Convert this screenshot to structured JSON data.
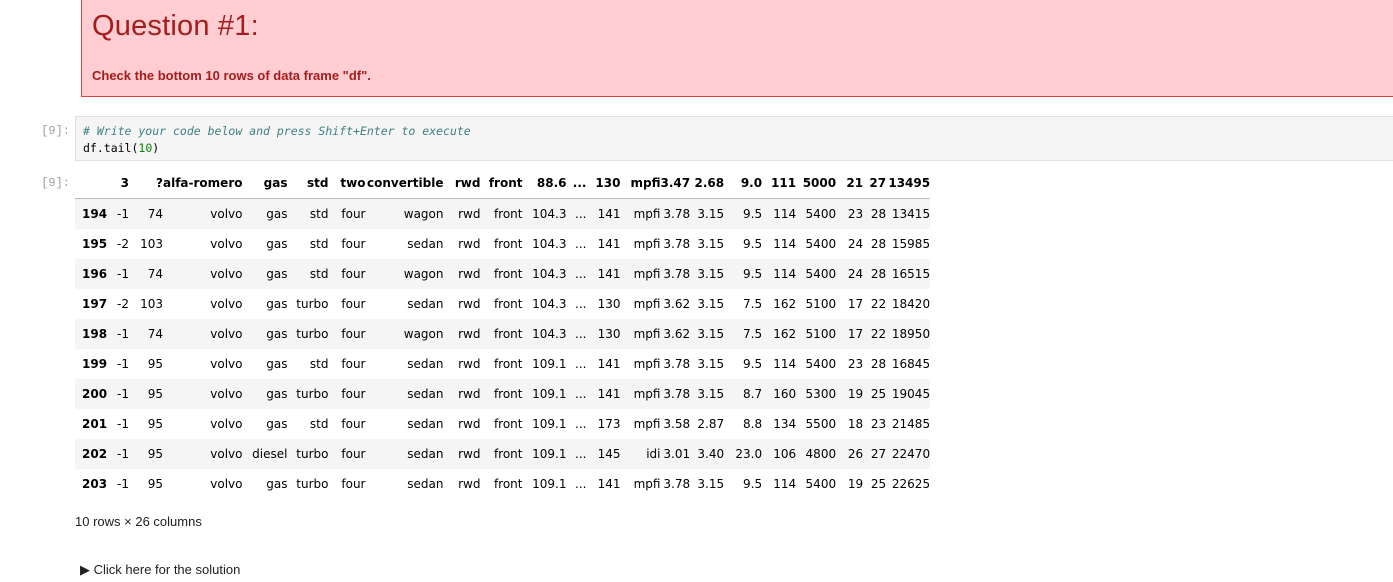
{
  "question": {
    "title": "Question #1:",
    "text": "Check the bottom 10 rows of data frame \"df\"."
  },
  "code_cell": {
    "prompt": "[9]:",
    "comment": "# Write your code below and press Shift+Enter to execute",
    "code_prefix": "df.tail(",
    "code_arg": "10",
    "code_suffix": ")"
  },
  "output": {
    "prompt": "[9]:",
    "columns": [
      "",
      "3",
      "?",
      "alfa-romero",
      "gas",
      "std",
      "two",
      "convertible",
      "rwd",
      "front",
      "88.6",
      "...",
      "130",
      "mpfi",
      "3.47",
      "2.68",
      "9.0",
      "111",
      "5000",
      "21",
      "27",
      "13495"
    ],
    "rows": [
      [
        "194",
        "-1",
        "74",
        "volvo",
        "gas",
        "std",
        "four",
        "wagon",
        "rwd",
        "front",
        "104.3",
        "...",
        "141",
        "mpfi",
        "3.78",
        "3.15",
        "9.5",
        "114",
        "5400",
        "23",
        "28",
        "13415"
      ],
      [
        "195",
        "-2",
        "103",
        "volvo",
        "gas",
        "std",
        "four",
        "sedan",
        "rwd",
        "front",
        "104.3",
        "...",
        "141",
        "mpfi",
        "3.78",
        "3.15",
        "9.5",
        "114",
        "5400",
        "24",
        "28",
        "15985"
      ],
      [
        "196",
        "-1",
        "74",
        "volvo",
        "gas",
        "std",
        "four",
        "wagon",
        "rwd",
        "front",
        "104.3",
        "...",
        "141",
        "mpfi",
        "3.78",
        "3.15",
        "9.5",
        "114",
        "5400",
        "24",
        "28",
        "16515"
      ],
      [
        "197",
        "-2",
        "103",
        "volvo",
        "gas",
        "turbo",
        "four",
        "sedan",
        "rwd",
        "front",
        "104.3",
        "...",
        "130",
        "mpfi",
        "3.62",
        "3.15",
        "7.5",
        "162",
        "5100",
        "17",
        "22",
        "18420"
      ],
      [
        "198",
        "-1",
        "74",
        "volvo",
        "gas",
        "turbo",
        "four",
        "wagon",
        "rwd",
        "front",
        "104.3",
        "...",
        "130",
        "mpfi",
        "3.62",
        "3.15",
        "7.5",
        "162",
        "5100",
        "17",
        "22",
        "18950"
      ],
      [
        "199",
        "-1",
        "95",
        "volvo",
        "gas",
        "std",
        "four",
        "sedan",
        "rwd",
        "front",
        "109.1",
        "...",
        "141",
        "mpfi",
        "3.78",
        "3.15",
        "9.5",
        "114",
        "5400",
        "23",
        "28",
        "16845"
      ],
      [
        "200",
        "-1",
        "95",
        "volvo",
        "gas",
        "turbo",
        "four",
        "sedan",
        "rwd",
        "front",
        "109.1",
        "...",
        "141",
        "mpfi",
        "3.78",
        "3.15",
        "8.7",
        "160",
        "5300",
        "19",
        "25",
        "19045"
      ],
      [
        "201",
        "-1",
        "95",
        "volvo",
        "gas",
        "std",
        "four",
        "sedan",
        "rwd",
        "front",
        "109.1",
        "...",
        "173",
        "mpfi",
        "3.58",
        "2.87",
        "8.8",
        "134",
        "5500",
        "18",
        "23",
        "21485"
      ],
      [
        "202",
        "-1",
        "95",
        "volvo",
        "diesel",
        "turbo",
        "four",
        "sedan",
        "rwd",
        "front",
        "109.1",
        "...",
        "145",
        "idi",
        "3.01",
        "3.40",
        "23.0",
        "106",
        "4800",
        "26",
        "27",
        "22470"
      ],
      [
        "203",
        "-1",
        "95",
        "volvo",
        "gas",
        "turbo",
        "four",
        "sedan",
        "rwd",
        "front",
        "109.1",
        "...",
        "141",
        "mpfi",
        "3.78",
        "3.15",
        "9.5",
        "114",
        "5400",
        "19",
        "25",
        "22625"
      ]
    ],
    "shape_text": "10 rows × 26 columns"
  },
  "solution_toggle": {
    "label": "Click here for the solution",
    "marker": "▶"
  }
}
